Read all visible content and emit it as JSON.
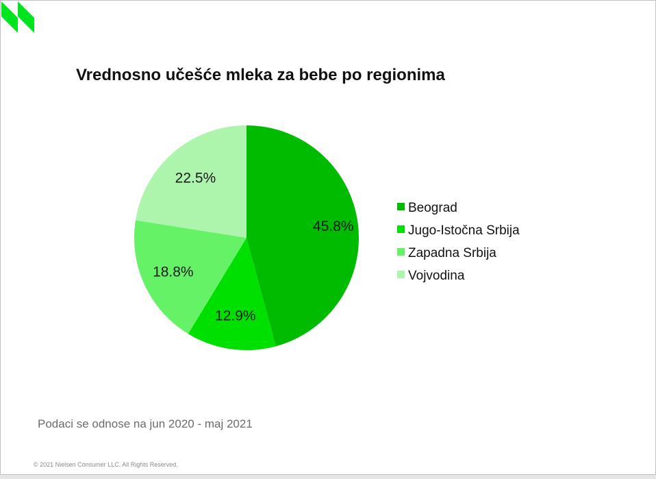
{
  "chart_data": {
    "type": "pie",
    "title": "Vrednosno učešće mleka za bebe po regionima",
    "categories": [
      "Beograd",
      "Jugo-Istočna Srbija",
      "Zapadna Srbija",
      "Vojvodina"
    ],
    "values": [
      45.8,
      12.9,
      18.8,
      22.5
    ],
    "data_labels": [
      "45.8%",
      "12.9%",
      "18.8%",
      "22.5%"
    ],
    "colors": [
      "#00bb00",
      "#00e000",
      "#66f266",
      "#adf5ad"
    ],
    "legend_position": "right",
    "start_angle": "12 o'clock, clockwise"
  },
  "footnote": "Podaci se odnose na jun 2020 - maj 2021",
  "copyright": "© 2021 Nielsen Consumer LLC. All Rights Reserved.",
  "logo": {
    "icon": "brand-stripes-icon",
    "color": "#00e31f"
  }
}
